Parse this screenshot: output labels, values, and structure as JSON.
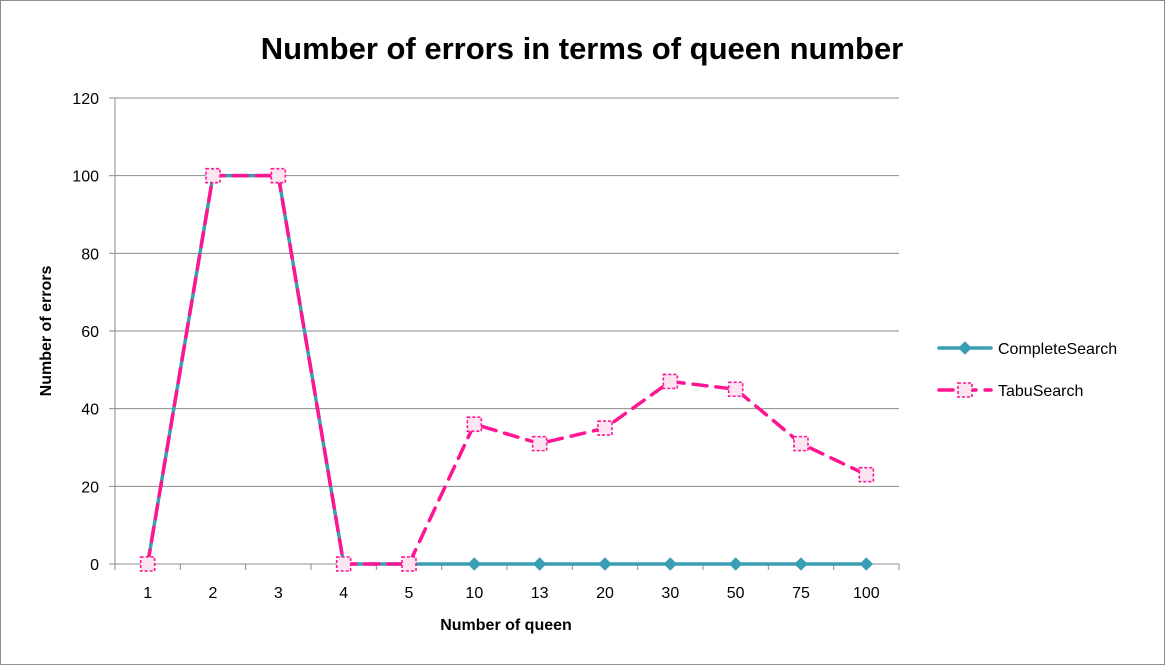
{
  "chart_data": {
    "type": "line",
    "title": "Number of errors in terms of queen number",
    "xlabel": "Number of queen",
    "ylabel": "Number of errors",
    "categories": [
      "1",
      "2",
      "3",
      "4",
      "5",
      "10",
      "13",
      "20",
      "30",
      "50",
      "75",
      "100"
    ],
    "ylim": [
      0,
      120
    ],
    "yticks": [
      0,
      20,
      40,
      60,
      80,
      100,
      120
    ],
    "grid": "horizontal",
    "legend_position": "right",
    "series": [
      {
        "name": "CompleteSearch",
        "values": [
          0,
          100,
          100,
          0,
          0,
          0,
          0,
          0,
          0,
          0,
          0,
          0
        ],
        "color": "#3a9fb4",
        "marker": "diamond",
        "line_style": "solid"
      },
      {
        "name": "TabuSearch",
        "values": [
          0,
          100,
          100,
          0,
          0,
          36,
          31,
          35,
          47,
          45,
          31,
          23
        ],
        "color": "#ff1493",
        "marker": "square",
        "line_style": "dashed"
      }
    ]
  }
}
